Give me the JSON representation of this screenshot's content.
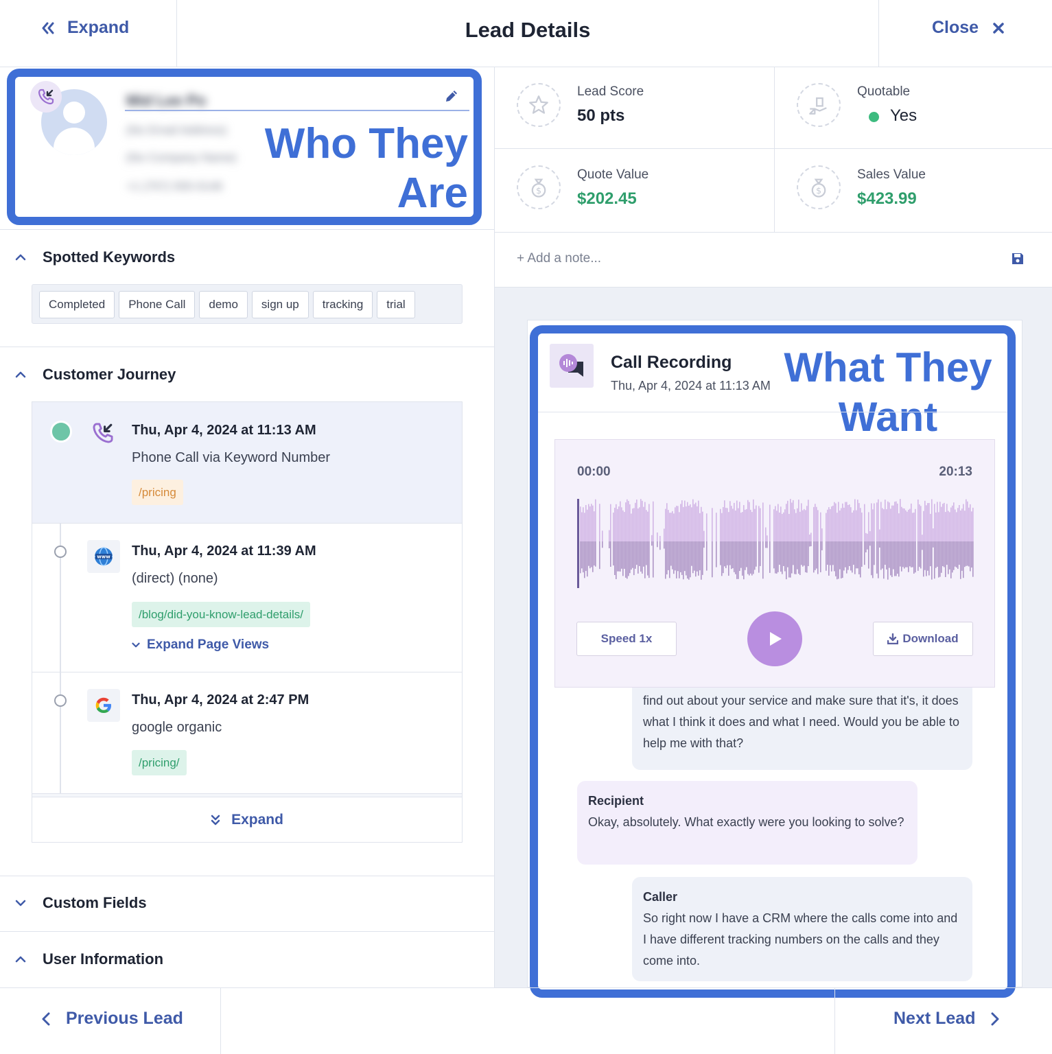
{
  "header": {
    "expand_label": "Expand",
    "title": "Lead Details",
    "close_label": "Close"
  },
  "contact": {
    "name": "Mid Lee Po",
    "email": "(No Email Address)",
    "company": "(No Company Name)",
    "phone": "+1 (757) 555-0146",
    "overlay_line1": "Who They",
    "overlay_line2": "Are"
  },
  "stats": {
    "lead_score_label": "Lead Score",
    "lead_score_value": "50 pts",
    "quotable_label": "Quotable",
    "quotable_value": "Yes",
    "quote_value_label": "Quote Value",
    "quote_value": "$202.45",
    "sales_value_label": "Sales Value",
    "sales_value": "$423.99",
    "colors": {
      "money": "#2f9e6c",
      "quotable_dot": "#3dbb7f",
      "accent": "#3f6fd6"
    }
  },
  "note": {
    "placeholder": "+ Add a note..."
  },
  "keywords": {
    "title": "Spotted Keywords",
    "items": [
      "Completed",
      "Phone Call",
      "demo",
      "sign up",
      "tracking",
      "trial"
    ]
  },
  "journey": {
    "title": "Customer Journey",
    "entries": [
      {
        "date": "Thu, Apr 4, 2024 at 11:13 AM",
        "source": "Phone Call via Keyword Number",
        "tag": "/pricing"
      },
      {
        "date": "Thu, Apr 4, 2024 at 11:39 AM",
        "source": "(direct) (none)",
        "tag": "/blog/did-you-know-lead-details/",
        "expand_label": "Expand Page Views"
      },
      {
        "date": "Thu, Apr 4, 2024 at 2:47 PM",
        "source": "google organic",
        "tag": "/pricing/"
      }
    ],
    "expand_label": "Expand"
  },
  "sections": {
    "custom_fields": "Custom Fields",
    "user_information": "User Information"
  },
  "recording": {
    "title": "Call Recording",
    "date": "Thu, Apr 4, 2024 at 11:13 AM",
    "overlay_line1": "What They",
    "overlay_line2": "Want",
    "time_start": "00:00",
    "time_end": "20:13",
    "speed_label": "Speed 1x",
    "download_label": "Download",
    "transcript": [
      {
        "speaker": "",
        "text": "find out about your service and make sure that it's, it does what I think it does and what I need. Would you be able to help me with that?"
      },
      {
        "speaker": "Recipient",
        "text": "Okay, absolutely. What exactly were you looking to solve?"
      },
      {
        "speaker": "Caller",
        "text": "So right now I have a CRM where the calls come into and I have different tracking numbers on the calls and they come into."
      }
    ]
  },
  "footer": {
    "previous_label": "Previous Lead",
    "next_label": "Next Lead"
  }
}
